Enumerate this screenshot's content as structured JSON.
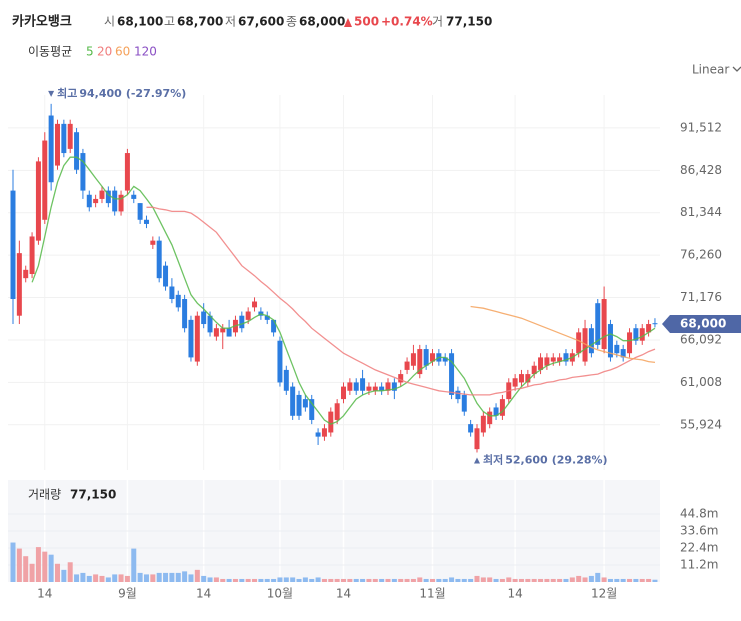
{
  "header": {
    "name": "카카오뱅크",
    "fields": [
      {
        "label": "시",
        "value": "68,100"
      },
      {
        "label": "고",
        "value": "68,700"
      },
      {
        "label": "저",
        "value": "67,600"
      },
      {
        "label": "종",
        "value": "68,000"
      }
    ],
    "change": "500",
    "change_pct": "+0.74%",
    "volume_label": "거",
    "volume": "77,150"
  },
  "chart_data": {
    "type": "candlestick",
    "scale_mode": "Linear",
    "colors": {
      "up": "#e8474d",
      "down": "#2b7de0",
      "up_volume": "#f0a2a6",
      "down_volume": "#8dbaf0"
    },
    "categories": [
      null,
      null,
      null,
      null,
      null,
      "14",
      null,
      null,
      null,
      null,
      null,
      null,
      null,
      null,
      null,
      null,
      null,
      null,
      "9월",
      null,
      null,
      null,
      null,
      null,
      null,
      null,
      null,
      null,
      null,
      null,
      "14",
      null,
      null,
      null,
      null,
      null,
      null,
      null,
      null,
      null,
      null,
      null,
      "10월",
      null,
      null,
      null,
      null,
      null,
      null,
      null,
      null,
      null,
      "14",
      null,
      null,
      null,
      null,
      null,
      null,
      null,
      null,
      null,
      null,
      null,
      null,
      null,
      "11월",
      null,
      null,
      null,
      null,
      null,
      null,
      null,
      null,
      null,
      null,
      null,
      null,
      "14",
      null,
      null,
      null,
      null,
      null,
      null,
      null,
      null,
      null,
      null,
      null,
      null,
      null,
      "12월",
      null,
      null,
      null,
      null,
      null,
      null,
      null,
      null
    ],
    "ohlc": [
      [
        84000,
        86500,
        68000,
        71000
      ],
      [
        69000,
        78000,
        68000,
        76500
      ],
      [
        73500,
        75000,
        73000,
        74500
      ],
      [
        74000,
        79000,
        73500,
        78500
      ],
      [
        78000,
        88000,
        77500,
        87500
      ],
      [
        80500,
        91000,
        80000,
        90000
      ],
      [
        93000,
        94400,
        84000,
        85000
      ],
      [
        87000,
        92500,
        86500,
        92000
      ],
      [
        92000,
        92500,
        88000,
        88500
      ],
      [
        89000,
        92500,
        88500,
        92000
      ],
      [
        91000,
        91500,
        86000,
        86500
      ],
      [
        88500,
        89000,
        83000,
        84000
      ],
      [
        83500,
        84000,
        81500,
        82000
      ],
      [
        82500,
        83500,
        82000,
        83000
      ],
      [
        83000,
        84500,
        82500,
        84000
      ],
      [
        84000,
        84500,
        82000,
        82500
      ],
      [
        84000,
        84500,
        81000,
        81500
      ],
      [
        81500,
        84000,
        81000,
        83500
      ],
      [
        84000,
        89000,
        83500,
        88500
      ],
      [
        83500,
        84000,
        82500,
        83000
      ],
      [
        82500,
        82500,
        80000,
        80500
      ],
      [
        80500,
        81000,
        79500,
        80000
      ],
      [
        77500,
        78500,
        77000,
        78000
      ],
      [
        78000,
        78500,
        73000,
        73500
      ],
      [
        75000,
        75500,
        72000,
        72500
      ],
      [
        72500,
        73500,
        70500,
        71000
      ],
      [
        71500,
        72000,
        69500,
        70000
      ],
      [
        71000,
        71500,
        67000,
        67500
      ],
      [
        68500,
        69000,
        63500,
        64000
      ],
      [
        63500,
        69500,
        63000,
        69000
      ],
      [
        69500,
        70500,
        67500,
        68000
      ],
      [
        69000,
        69500,
        66500,
        67000
      ],
      [
        66500,
        68000,
        66000,
        67500
      ],
      [
        67000,
        68000,
        65000,
        67500
      ],
      [
        67500,
        68500,
        66500,
        66500
      ],
      [
        67000,
        69000,
        66500,
        68500
      ],
      [
        69000,
        69500,
        67000,
        67500
      ],
      [
        68500,
        70000,
        68000,
        69500
      ],
      [
        70000,
        71200,
        69500,
        70700
      ],
      [
        69500,
        70000,
        68500,
        69000
      ],
      [
        69000,
        69500,
        68000,
        68500
      ],
      [
        68500,
        68500,
        66500,
        67000
      ],
      [
        66000,
        66500,
        60500,
        61000
      ],
      [
        62500,
        63000,
        59500,
        60000
      ],
      [
        60500,
        61000,
        56500,
        57000
      ],
      [
        59500,
        60000,
        56500,
        57000
      ],
      [
        59000,
        59500,
        57500,
        58000
      ],
      [
        59000,
        59500,
        56000,
        56500
      ],
      [
        55000,
        55500,
        53500,
        54500
      ],
      [
        54500,
        56000,
        54000,
        55500
      ],
      [
        55000,
        58000,
        54500,
        57500
      ],
      [
        56500,
        59000,
        56000,
        58500
      ],
      [
        59000,
        61000,
        58500,
        60500
      ],
      [
        60000,
        61500,
        59500,
        61000
      ],
      [
        61000,
        61500,
        59500,
        60000
      ],
      [
        61500,
        62500,
        59500,
        60000
      ],
      [
        60000,
        61000,
        59500,
        60500
      ],
      [
        60000,
        61000,
        59500,
        60500
      ],
      [
        60500,
        61000,
        59500,
        60000
      ],
      [
        60000,
        61500,
        59500,
        61000
      ],
      [
        61000,
        61500,
        59000,
        60000
      ],
      [
        61000,
        62500,
        60500,
        62000
      ],
      [
        62500,
        64000,
        62000,
        63500
      ],
      [
        63000,
        65500,
        62500,
        64500
      ],
      [
        62000,
        65500,
        61500,
        65000
      ],
      [
        65000,
        65500,
        62500,
        63000
      ],
      [
        63500,
        65000,
        63000,
        64500
      ],
      [
        64500,
        65000,
        63000,
        63500
      ],
      [
        64000,
        64500,
        63000,
        63500
      ],
      [
        64500,
        65000,
        59000,
        59500
      ],
      [
        60000,
        60500,
        58500,
        59000
      ],
      [
        59500,
        60000,
        57000,
        57500
      ],
      [
        56000,
        56500,
        54500,
        55000
      ],
      [
        53000,
        56000,
        52600,
        55500
      ],
      [
        55000,
        57500,
        54500,
        57000
      ],
      [
        56000,
        58000,
        55500,
        57500
      ],
      [
        58000,
        58500,
        56500,
        57000
      ],
      [
        57000,
        59500,
        56500,
        59000
      ],
      [
        59000,
        61500,
        58500,
        61000
      ],
      [
        60500,
        62000,
        60000,
        61500
      ],
      [
        61000,
        62500,
        60500,
        62000
      ],
      [
        61000,
        62500,
        60500,
        62000
      ],
      [
        62000,
        63500,
        61500,
        63000
      ],
      [
        62500,
        64500,
        62000,
        64000
      ],
      [
        63000,
        64500,
        62500,
        64000
      ],
      [
        63500,
        64500,
        63000,
        64000
      ],
      [
        63500,
        64500,
        63000,
        64000
      ],
      [
        64500,
        65000,
        63000,
        63500
      ],
      [
        63500,
        65000,
        63000,
        64500
      ],
      [
        64500,
        67500,
        64000,
        67000
      ],
      [
        63500,
        68500,
        63000,
        67500
      ],
      [
        67500,
        68000,
        64000,
        64500
      ],
      [
        70500,
        71000,
        65000,
        65500
      ],
      [
        65000,
        72500,
        64500,
        71000
      ],
      [
        68000,
        68500,
        63500,
        64000
      ],
      [
        65500,
        66000,
        64000,
        64500
      ],
      [
        65000,
        65500,
        63500,
        64000
      ],
      [
        64500,
        67500,
        64000,
        67000
      ],
      [
        67500,
        68000,
        65500,
        66000
      ],
      [
        66000,
        68000,
        65500,
        67500
      ],
      [
        67000,
        68500,
        66500,
        68000
      ],
      [
        68100,
        68700,
        67600,
        68000
      ]
    ],
    "ylim": [
      50500,
      96300
    ],
    "yticks": [
      {
        "value": 55924,
        "label": "55,924"
      },
      {
        "value": 61008,
        "label": "61,008"
      },
      {
        "value": 66092,
        "label": "66,092"
      },
      {
        "value": 71176,
        "label": "71,176"
      },
      {
        "value": 76260,
        "label": "76,260"
      },
      {
        "value": 81344,
        "label": "81,344"
      },
      {
        "value": 86428,
        "label": "86,428"
      },
      {
        "value": 91512,
        "label": "91,512"
      }
    ],
    "moving_averages": {
      "label": "이동평균",
      "series": [
        {
          "name": "5",
          "color": "#55b948",
          "values": [
            null,
            null,
            null,
            73000,
            75000,
            78500,
            82000,
            85000,
            87000,
            88000,
            88000,
            87500,
            86500,
            85500,
            84500,
            83500,
            83000,
            83000,
            83500,
            84500,
            84000,
            83000,
            82000,
            80500,
            79000,
            77500,
            75500,
            73500,
            71500,
            70500,
            69800,
            69000,
            68200,
            67500,
            67500,
            67800,
            68000,
            68300,
            68800,
            69200,
            69000,
            68500,
            67000,
            65000,
            63000,
            61000,
            59500,
            58500,
            57500,
            56500,
            56000,
            56300,
            57000,
            58000,
            59000,
            59500,
            59800,
            60000,
            60000,
            60100,
            60200,
            60500,
            61000,
            61800,
            62500,
            63000,
            63500,
            64000,
            64000,
            63500,
            62500,
            61500,
            60000,
            58500,
            57500,
            57000,
            57000,
            57500,
            58500,
            59500,
            60500,
            61200,
            62000,
            62500,
            63000,
            63300,
            63500,
            63700,
            64000,
            64500,
            65000,
            65500,
            66000,
            66500,
            66800,
            66500,
            66000,
            66000,
            66200,
            66500,
            67000,
            67500
          ]
        },
        {
          "name": "20",
          "color": "#f07d7d",
          "values": [
            null,
            null,
            null,
            null,
            null,
            null,
            null,
            null,
            null,
            null,
            null,
            null,
            null,
            null,
            null,
            null,
            null,
            null,
            null,
            null,
            null,
            82000,
            82000,
            81800,
            81700,
            81500,
            81500,
            81500,
            81300,
            80800,
            80200,
            79600,
            79000,
            78000,
            77000,
            76000,
            75000,
            74400,
            73800,
            73100,
            72500,
            71800,
            71100,
            70500,
            69800,
            69000,
            68300,
            67500,
            66900,
            66300,
            65700,
            65100,
            64500,
            64100,
            63700,
            63300,
            62900,
            62500,
            62200,
            61900,
            61600,
            61300,
            61000,
            60800,
            60600,
            60400,
            60200,
            60000,
            59900,
            59800,
            59700,
            59600,
            59500,
            59500,
            59500,
            59500,
            59700,
            59800,
            60000,
            60200,
            60300,
            60500,
            60700,
            60800,
            61000,
            61100,
            61300,
            61400,
            61600,
            61700,
            61800,
            61900,
            62000,
            62300,
            62500,
            62800,
            63200,
            63600,
            64000,
            64300,
            64700,
            65000
          ]
        },
        {
          "name": "60",
          "color": "#f5a15a",
          "values": [
            null,
            null,
            null,
            null,
            null,
            null,
            null,
            null,
            null,
            null,
            null,
            null,
            null,
            null,
            null,
            null,
            null,
            null,
            null,
            null,
            null,
            null,
            null,
            null,
            null,
            null,
            null,
            null,
            null,
            null,
            null,
            null,
            null,
            null,
            null,
            null,
            null,
            null,
            null,
            null,
            null,
            null,
            null,
            null,
            null,
            null,
            null,
            null,
            null,
            null,
            null,
            null,
            null,
            null,
            null,
            null,
            null,
            null,
            null,
            null,
            null,
            null,
            null,
            null,
            null,
            null,
            null,
            null,
            null,
            null,
            null,
            null,
            70100,
            70000,
            69900,
            69700,
            69500,
            69300,
            69100,
            68900,
            68700,
            68400,
            68100,
            67800,
            67500,
            67200,
            66900,
            66600,
            66300,
            66000,
            65600,
            65200,
            64900,
            64700,
            64500,
            64300,
            64100,
            63900,
            63800,
            63700,
            63500,
            63400
          ]
        },
        {
          "name": "120",
          "color": "#8a4fc4"
        }
      ]
    },
    "high_annotation": {
      "index": 6,
      "label": "최고",
      "value": "94,400",
      "change": "(-27.97%)"
    },
    "low_annotation": {
      "index": 73,
      "label": "최저",
      "value": "52,600",
      "change": "(29.28%)"
    },
    "price_tag": {
      "value": 68000,
      "label": "68,000"
    },
    "volume": {
      "label": "거래량",
      "last": "77,150",
      "values": [
        26000000,
        22000000,
        17000000,
        12000000,
        23000000,
        20000000,
        18000000,
        12000000,
        8000000,
        13000000,
        5000000,
        6000000,
        4000000,
        5000000,
        4000000,
        3000000,
        5000000,
        5000000,
        4000000,
        22000000,
        6000000,
        5000000,
        5000000,
        6000000,
        6000000,
        6000000,
        6000000,
        7000000,
        5000000,
        8000000,
        4000000,
        3000000,
        3000000,
        2000000,
        2000000,
        2000000,
        2000000,
        2000000,
        2000000,
        2000000,
        2000000,
        2000000,
        3000000,
        3000000,
        3000000,
        2000000,
        3000000,
        2000000,
        3000000,
        2000000,
        2000000,
        2000000,
        2000000,
        2000000,
        2000000,
        2000000,
        2000000,
        2000000,
        2000000,
        2000000,
        2000000,
        2000000,
        2000000,
        2000000,
        3000000,
        2000000,
        2000000,
        2000000,
        2000000,
        3000000,
        2000000,
        2000000,
        2000000,
        4000000,
        3000000,
        3000000,
        2000000,
        2000000,
        3000000,
        2000000,
        2000000,
        2000000,
        2000000,
        2000000,
        2000000,
        2000000,
        2000000,
        2000000,
        3000000,
        4000000,
        3000000,
        4000000,
        6000000,
        3000000,
        2000000,
        2000000,
        2000000,
        2000000,
        2000000,
        2000000,
        2000000,
        1500000
      ],
      "ylim": [
        0,
        67200000
      ],
      "yticks": [
        {
          "value": 11200000,
          "label": "11.2m"
        },
        {
          "value": 22400000,
          "label": "22.4m"
        },
        {
          "value": 33600000,
          "label": "33.6m"
        },
        {
          "value": 44800000,
          "label": "44.8m"
        }
      ]
    }
  }
}
